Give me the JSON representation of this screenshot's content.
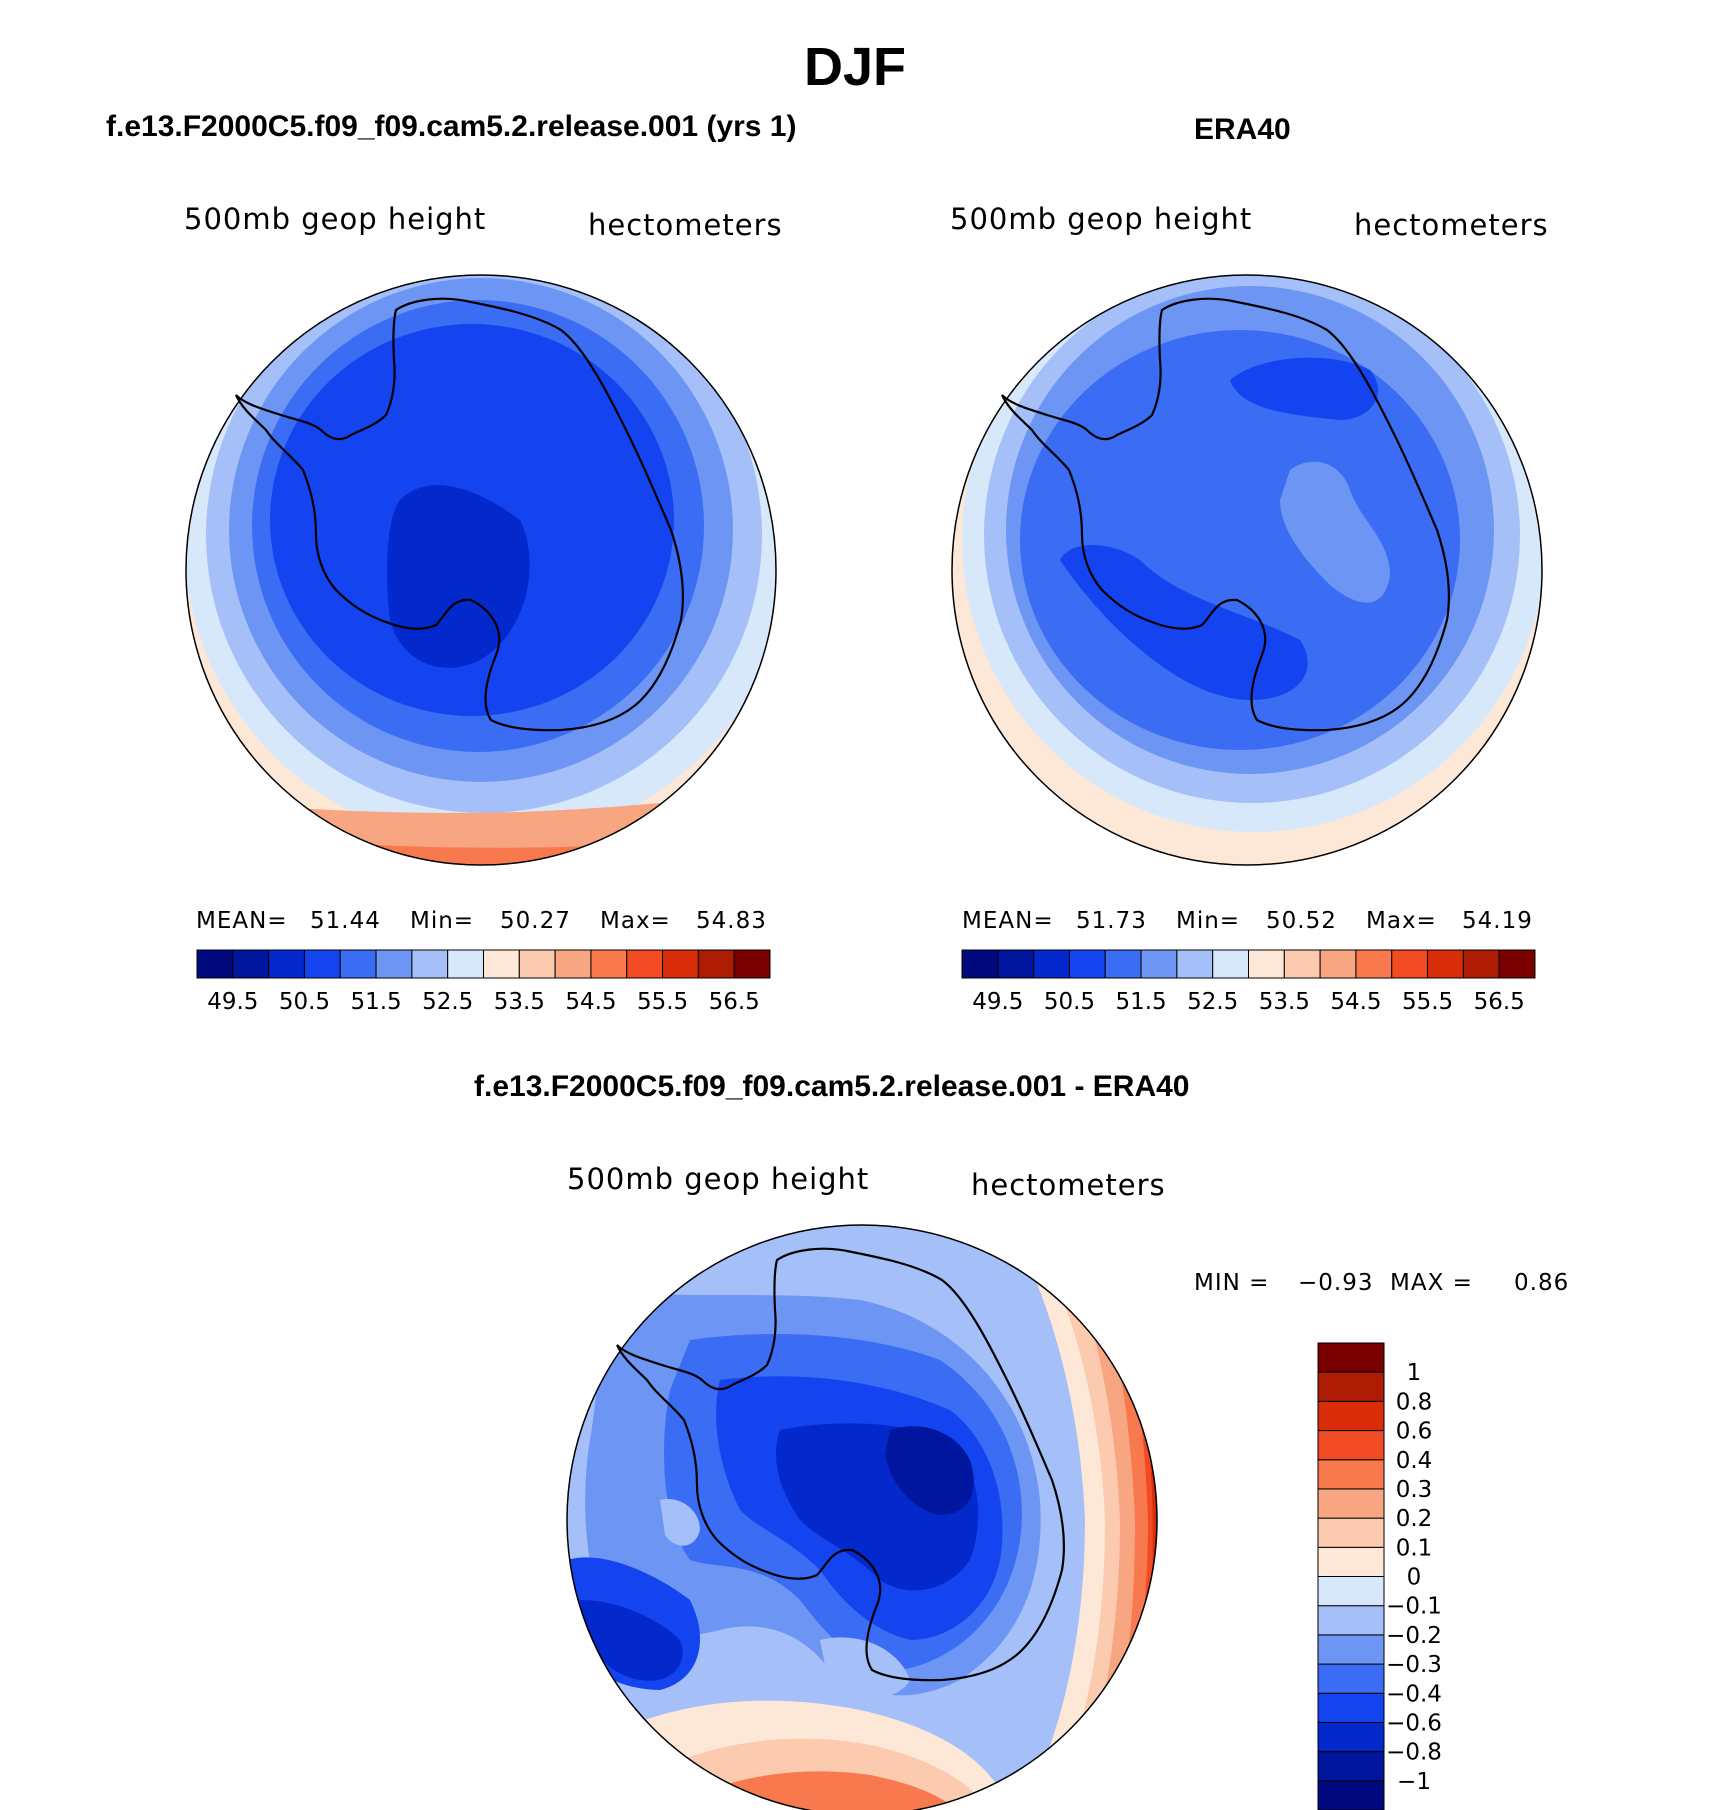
{
  "title": "DJF",
  "panels": [
    {
      "title": "f.e13.F2000C5.f09_f09.cam5.2.release.001 (yrs 1)",
      "variable": "500mb geop height",
      "units": "hectometers",
      "stats": {
        "mean_label": "MEAN=",
        "mean": "51.44",
        "min_label": "Min=",
        "min": "50.27",
        "max_label": "Max=",
        "max": "54.83"
      }
    },
    {
      "title": "ERA40",
      "variable": "500mb geop height",
      "units": "hectometers",
      "stats": {
        "mean_label": "MEAN=",
        "mean": "51.73",
        "min_label": "Min=",
        "min": "50.52",
        "max_label": "Max=",
        "max": "54.19"
      }
    },
    {
      "title": "f.e13.F2000C5.f09_f09.cam5.2.release.001 - ERA40",
      "variable": "500mb geop height",
      "units": "hectometers",
      "stats": {
        "min_label": "MIN =",
        "min": "−0.93",
        "max_label": "MAX =",
        "max": "0.86"
      }
    }
  ],
  "colorbars": {
    "absolute": {
      "colors": [
        "#000a7e",
        "#00169e",
        "#0328cc",
        "#1444f0",
        "#3a6df3",
        "#6d96f4",
        "#a5c0f8",
        "#d8e8fb",
        "#fde7d6",
        "#fbcaaf",
        "#f8a682",
        "#f8794e",
        "#f24a22",
        "#d92e09",
        "#ae1c03",
        "#7a0000"
      ],
      "labels": [
        "49.5",
        "50.5",
        "51.5",
        "52.5",
        "53.5",
        "54.5",
        "55.5",
        "56.5"
      ]
    },
    "difference": {
      "colors": [
        "#000a7e",
        "#00169e",
        "#0328cc",
        "#1444f0",
        "#3a6df3",
        "#6d96f4",
        "#a5c0f8",
        "#d8e8fb",
        "#fde7d6",
        "#fbcaaf",
        "#f8a682",
        "#f8794e",
        "#f24a22",
        "#d92e09",
        "#ae1c03",
        "#7a0000"
      ],
      "labels": [
        "−1",
        "−0.8",
        "−0.6",
        "−0.4",
        "−0.3",
        "−0.2",
        "−0.1",
        "0",
        "0.1",
        "0.2",
        "0.3",
        "0.4",
        "0.6",
        "0.8",
        "1"
      ]
    }
  },
  "chart_data": [
    {
      "type": "heatmap",
      "title": "f.e13.F2000C5.f09_f09.cam5.2.release.001 (yrs 1)",
      "projection": "south polar stereographic",
      "variable": "500mb geop height",
      "units": "hectometers",
      "mean": 51.44,
      "min": 50.27,
      "max": 54.83,
      "contour_levels": [
        49.5,
        50,
        50.5,
        51,
        51.5,
        52,
        52.5,
        53,
        53.5,
        54,
        54.5,
        55,
        55.5,
        56,
        56.5
      ]
    },
    {
      "type": "heatmap",
      "title": "ERA40",
      "projection": "south polar stereographic",
      "variable": "500mb geop height",
      "units": "hectometers",
      "mean": 51.73,
      "min": 50.52,
      "max": 54.19,
      "contour_levels": [
        49.5,
        50,
        50.5,
        51,
        51.5,
        52,
        52.5,
        53,
        53.5,
        54,
        54.5,
        55,
        55.5,
        56,
        56.5
      ]
    },
    {
      "type": "heatmap",
      "title": "f.e13.F2000C5.f09_f09.cam5.2.release.001 - ERA40",
      "projection": "south polar stereographic",
      "variable": "500mb geop height",
      "units": "hectometers",
      "min": -0.93,
      "max": 0.86,
      "contour_levels": [
        -1,
        -0.8,
        -0.6,
        -0.4,
        -0.3,
        -0.2,
        -0.1,
        0,
        0.1,
        0.2,
        0.3,
        0.4,
        0.6,
        0.8,
        1
      ]
    }
  ]
}
